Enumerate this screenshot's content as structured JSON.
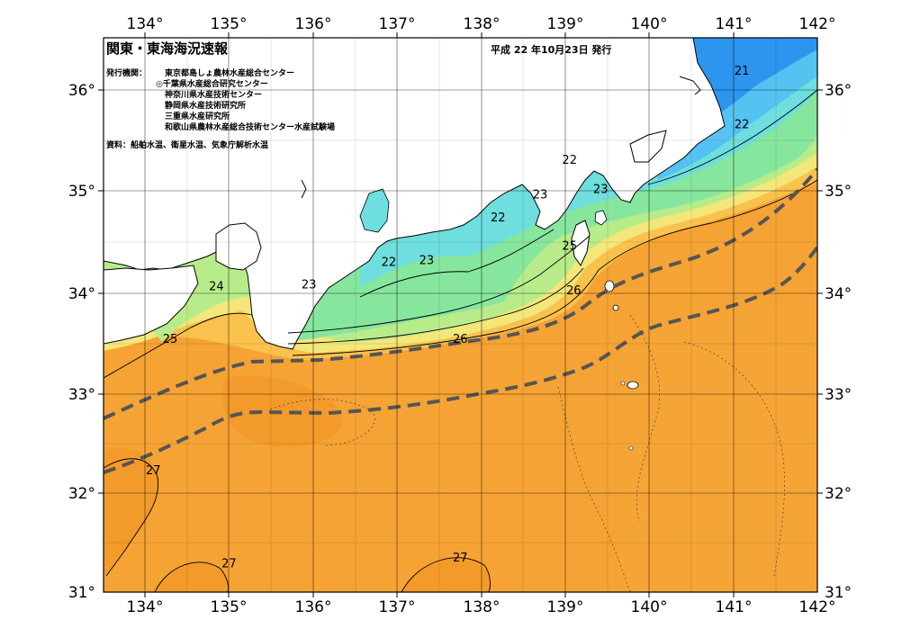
{
  "header": {
    "title": "関東・東海海況速報",
    "issue_date": "平成 22 年10月23日 発行",
    "issuer_label": "発行機関：",
    "issuers": [
      "東京都島しょ農林水産総合センター",
      "◎千葉県水産総合研究センター",
      "神奈川県水産技術センター",
      "静岡県水産技術研究所",
      "三重県水産研究所",
      "和歌山県農林水産総合技術センター水産試験場"
    ],
    "source": "資料：船舶水温、衛星水温、気象庁解析水温"
  },
  "axes": {
    "lon_ticks": [
      "134°",
      "135°",
      "136°",
      "137°",
      "138°",
      "139°",
      "140°",
      "141°",
      "142°"
    ],
    "lat_ticks": [
      "36°",
      "35°",
      "34°",
      "33°",
      "32°",
      "31°"
    ]
  },
  "contour_labels": [
    {
      "text": "21",
      "lon": 141.1,
      "lat": 36.15
    },
    {
      "text": "22",
      "lon": 141.1,
      "lat": 35.62
    },
    {
      "text": "22",
      "lon": 139.05,
      "lat": 35.27
    },
    {
      "text": "23",
      "lon": 139.42,
      "lat": 34.98
    },
    {
      "text": "23",
      "lon": 138.7,
      "lat": 34.93
    },
    {
      "text": "22",
      "lon": 138.2,
      "lat": 34.7
    },
    {
      "text": "22",
      "lon": 136.9,
      "lat": 34.26
    },
    {
      "text": "23",
      "lon": 137.35,
      "lat": 34.28
    },
    {
      "text": "23",
      "lon": 135.95,
      "lat": 34.04
    },
    {
      "text": "24",
      "lon": 134.85,
      "lat": 34.02
    },
    {
      "text": "25",
      "lon": 139.05,
      "lat": 34.42
    },
    {
      "text": "26",
      "lon": 139.1,
      "lat": 33.98
    },
    {
      "text": "26",
      "lon": 137.75,
      "lat": 33.5
    },
    {
      "text": "25",
      "lon": 134.3,
      "lat": 33.5
    },
    {
      "text": "27",
      "lon": 134.1,
      "lat": 32.2
    },
    {
      "text": "27",
      "lon": 135.0,
      "lat": 31.28
    },
    {
      "text": "27",
      "lon": 137.75,
      "lat": 31.34
    }
  ],
  "colors": {
    "warm_27": "#f7a336",
    "warm_26": "#f5a02f",
    "t25": "#f9c24d",
    "t24": "#f4e77a",
    "t23": "#b8ec8a",
    "t22": "#7de6a8",
    "t21": "#6edede",
    "cold": "#55c3f2",
    "colder": "#2c95ee",
    "land": "#ffffff",
    "kuroshio": "#555555"
  }
}
